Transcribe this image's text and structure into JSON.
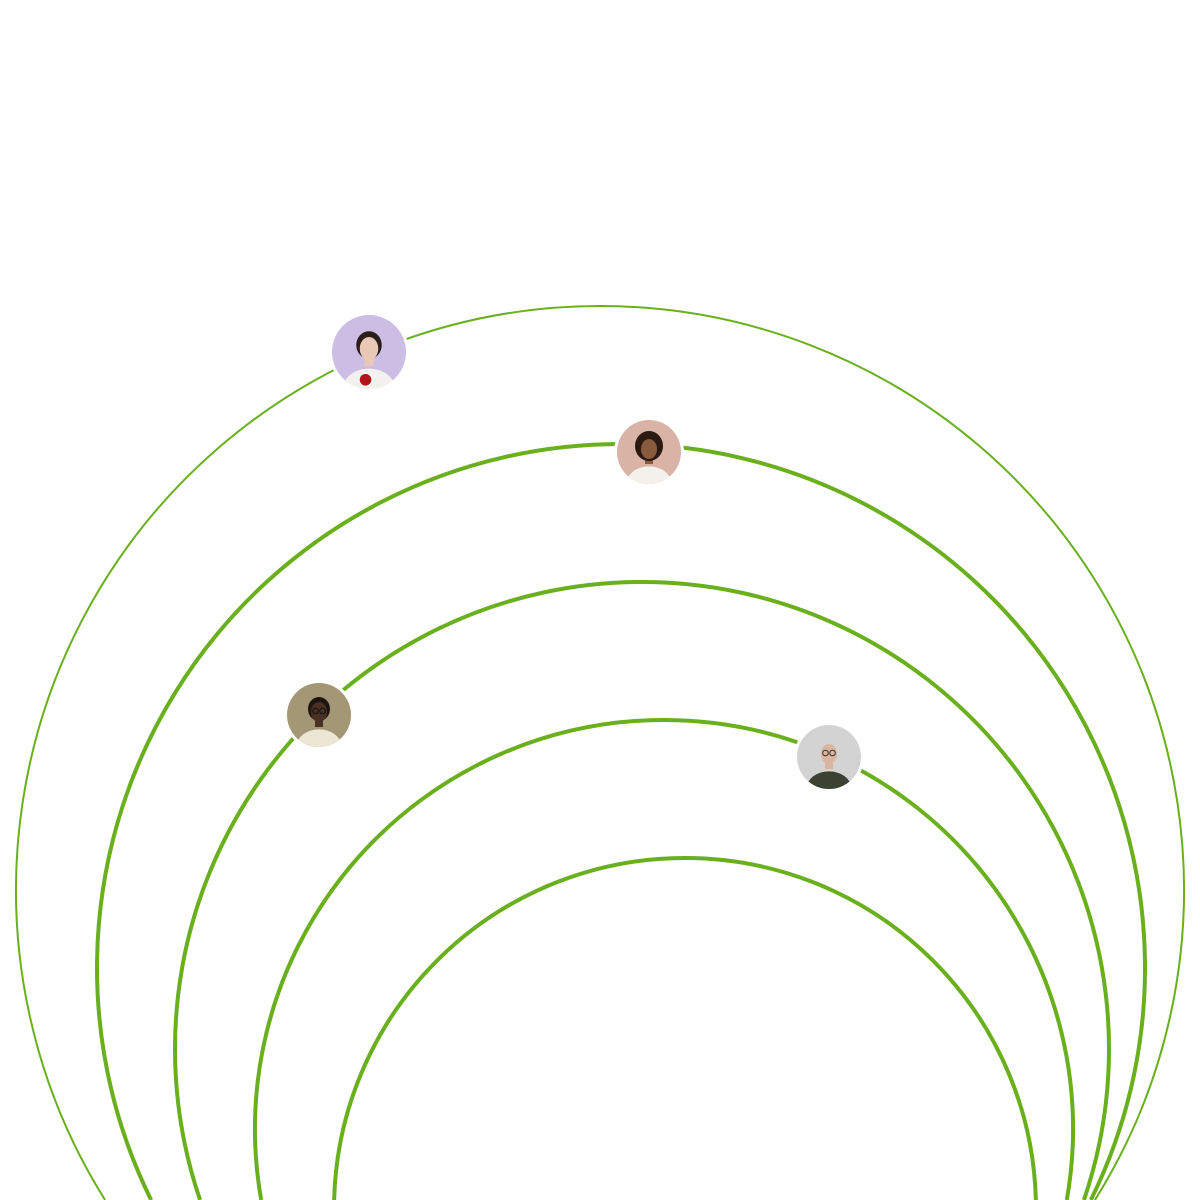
{
  "colors": {
    "background": "#ffffff",
    "orbit": "#6aaf1e"
  },
  "avatars": [
    {
      "name": "woman-with-red-flower",
      "bg": "#cbbde3",
      "skin": "#e9c9b5",
      "hair": "#2a1d1a",
      "shirt": "#f3f1ee",
      "accent": "#b3121b"
    },
    {
      "name": "woman-with-curly-hair",
      "bg": "#d9b3a6",
      "skin": "#8a5a3f",
      "hair": "#2b1a12",
      "shirt": "#f4f0ec",
      "accent": ""
    },
    {
      "name": "man-with-glasses",
      "bg": "#a39775",
      "skin": "#4a3022",
      "hair": "#1e1511",
      "shirt": "#ece6d4",
      "accent": "#111111"
    },
    {
      "name": "bald-man-with-glasses",
      "bg": "#d3d3d3",
      "skin": "#d9b6a1",
      "hair": "#d9b6a1",
      "shirt": "#3b4233",
      "accent": "#333333"
    }
  ]
}
